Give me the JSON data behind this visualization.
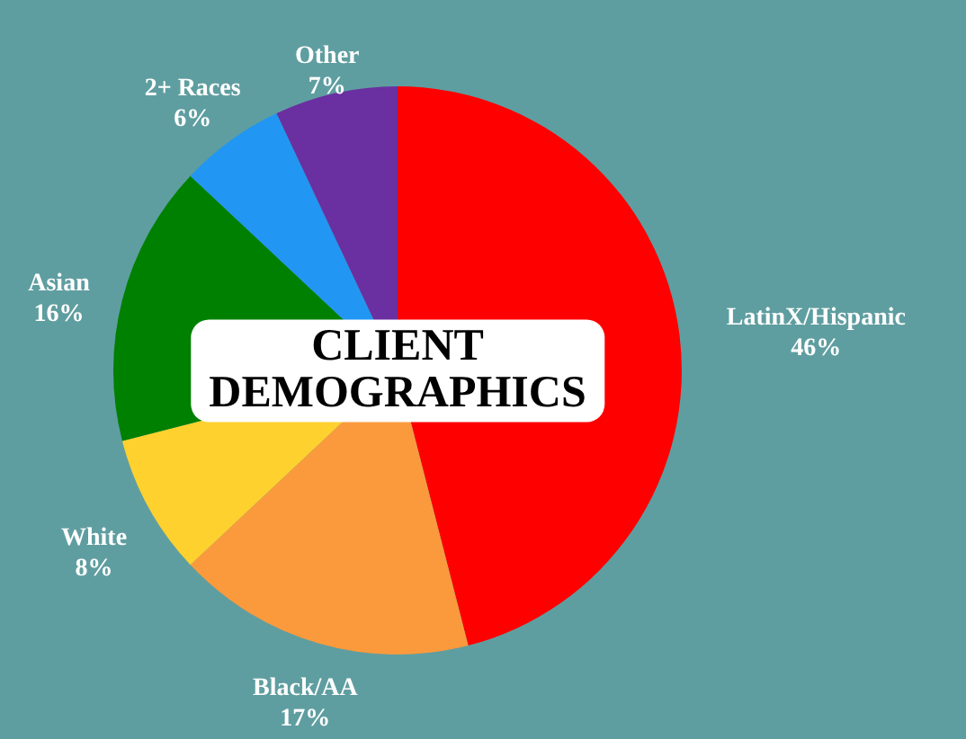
{
  "chart_data": {
    "type": "pie",
    "title": "CLIENT DEMOGRAPHICS",
    "categories": [
      "LatinX/Hispanic",
      "Black/AA",
      "White",
      "Asian",
      "2+ Races",
      "Other"
    ],
    "values": [
      46,
      17,
      8,
      16,
      6,
      7
    ],
    "value_labels": [
      "46%",
      "17%",
      "8%",
      "16%",
      "6%",
      "7%"
    ],
    "colors": [
      "#ff0000",
      "#fb9a3c",
      "#ffd12e",
      "#008000",
      "#2196f3",
      "#6a2fa0"
    ]
  }
}
